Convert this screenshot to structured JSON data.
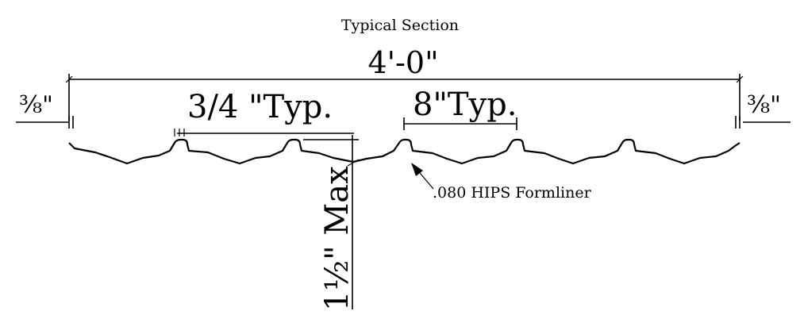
{
  "drawing": {
    "title": "Typical Section",
    "overall_width": "4'-0\"",
    "edge_offset_left": "⅜\"",
    "edge_offset_right": "⅜\"",
    "rib_width": "3/4 \"Typ.",
    "rib_spacing": "8\"Typ.",
    "depth": "1½\" Max",
    "material_note": ".080 HIPS Formliner"
  }
}
